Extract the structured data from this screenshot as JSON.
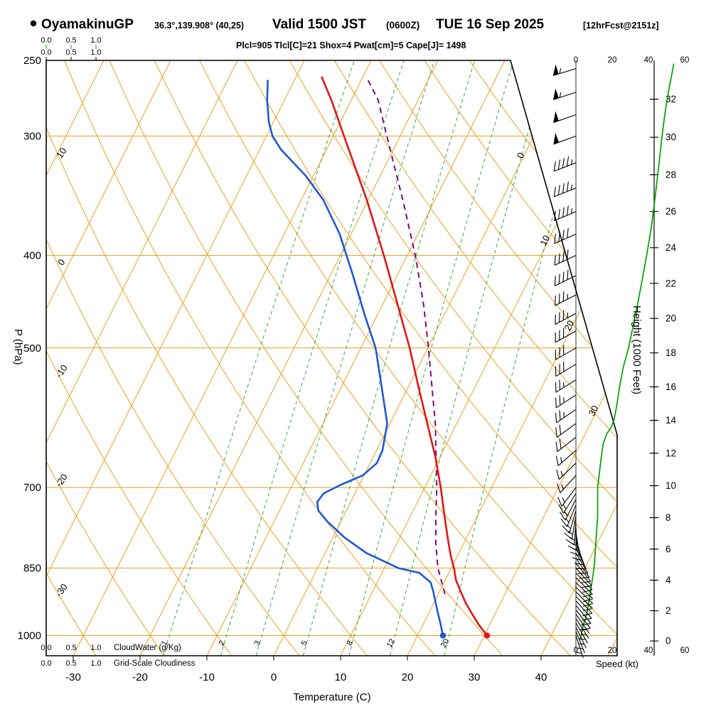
{
  "header": {
    "station": "OyamakinuGP",
    "coords": "36.3°,139.908° (40,25)",
    "valid": "Valid 1500 JST",
    "utc": "(0600Z)",
    "date": "TUE 16 Sep 2025",
    "fcst": "[12hrFcst@2151z]",
    "stats": "Plcl=905 Tlcl[C]=21 Shox=4 Pwat[cm]=5 Cape[J]= 1498"
  },
  "axes": {
    "pressure_label": "P (hPa)",
    "pressure_ticks": [
      250,
      300,
      400,
      500,
      700,
      850,
      1000
    ],
    "temp_label": "Temperature (C)",
    "temp_ticks": [
      -30,
      -20,
      -10,
      0,
      10,
      20,
      30,
      40
    ],
    "height_label": "Height (1000 Feet)",
    "height_ticks": [
      0,
      2,
      4,
      6,
      8,
      10,
      12,
      14,
      16,
      18,
      20,
      22,
      24,
      26,
      28,
      30,
      32
    ],
    "speed_label": "Speed (kt)",
    "speed_ticks": [
      0,
      20,
      40,
      60
    ],
    "cloud_scale": [
      "0.0",
      "0.5",
      "1.0"
    ],
    "cloudwater_label": "CloudWater (g/Kg)",
    "cloudiness_label": "Grid-Scale Cloudiness"
  },
  "lattice": {
    "isotherm_labels": [
      0,
      10,
      20,
      30
    ],
    "adiabat_labels": [
      10,
      0,
      -10,
      -20,
      -30
    ],
    "mixing_ratio_labels": [
      1,
      2,
      3,
      5,
      8,
      12,
      20
    ]
  },
  "colors": {
    "lattice": "#eaa121",
    "mixing": "#3fa33f",
    "green_text": "#00a000",
    "temperature": "#e01616",
    "dewpoint": "#1f57d4",
    "parcel": "#7a0b7a",
    "stats": "#a8006e",
    "frame": "#000000"
  },
  "chart_data": {
    "type": "line",
    "variant": "skew-t log-p thermodynamic sounding",
    "pressure_range_hpa": [
      1050,
      250
    ],
    "temp_axis_c": [
      -30,
      40
    ],
    "height_axis_kft": [
      0,
      32
    ],
    "speed_axis_kt": [
      0,
      60
    ],
    "series": [
      {
        "name": "temperature_c",
        "points": [
          [
            1000,
            30.4
          ],
          [
            975,
            28.4
          ],
          [
            950,
            26.6
          ],
          [
            925,
            24.8
          ],
          [
            900,
            23.2
          ],
          [
            875,
            21.6
          ],
          [
            850,
            20.4
          ],
          [
            825,
            19.0
          ],
          [
            800,
            17.7
          ],
          [
            750,
            15.1
          ],
          [
            700,
            12.4
          ],
          [
            650,
            9.3
          ],
          [
            600,
            5.6
          ],
          [
            550,
            1.6
          ],
          [
            500,
            -2.7
          ],
          [
            450,
            -7.8
          ],
          [
            400,
            -13.5
          ],
          [
            350,
            -20.2
          ],
          [
            300,
            -28.4
          ],
          [
            275,
            -33.0
          ],
          [
            260,
            -36.2
          ]
        ]
      },
      {
        "name": "dewpoint_c",
        "points": [
          [
            1000,
            23.8
          ],
          [
            975,
            22.7
          ],
          [
            950,
            21.5
          ],
          [
            925,
            20.3
          ],
          [
            900,
            19.1
          ],
          [
            880,
            18.0
          ],
          [
            860,
            15.6
          ],
          [
            850,
            12.1
          ],
          [
            820,
            6.2
          ],
          [
            790,
            1.8
          ],
          [
            760,
            -2.0
          ],
          [
            740,
            -4.2
          ],
          [
            725,
            -5.0
          ],
          [
            710,
            -4.7
          ],
          [
            695,
            -2.7
          ],
          [
            680,
            -0.2
          ],
          [
            660,
            1.0
          ],
          [
            640,
            0.9
          ],
          [
            600,
            -0.4
          ],
          [
            560,
            -3.2
          ],
          [
            520,
            -6.2
          ],
          [
            500,
            -7.8
          ],
          [
            460,
            -12.1
          ],
          [
            420,
            -16.6
          ],
          [
            380,
            -21.7
          ],
          [
            350,
            -26.7
          ],
          [
            330,
            -31.2
          ],
          [
            310,
            -36.8
          ],
          [
            300,
            -39.1
          ],
          [
            290,
            -40.7
          ],
          [
            275,
            -42.6
          ],
          [
            262,
            -44.0
          ]
        ]
      },
      {
        "name": "parcel_c",
        "points": [
          [
            905,
            21.0
          ],
          [
            850,
            18.0
          ],
          [
            800,
            15.8
          ],
          [
            750,
            13.8
          ],
          [
            700,
            11.8
          ],
          [
            650,
            9.4
          ],
          [
            600,
            6.8
          ],
          [
            550,
            3.6
          ],
          [
            500,
            0.1
          ],
          [
            450,
            -3.9
          ],
          [
            400,
            -8.8
          ],
          [
            350,
            -14.8
          ],
          [
            300,
            -22.0
          ],
          [
            275,
            -26.0
          ],
          [
            260,
            -29.5
          ]
        ]
      },
      {
        "name": "wind_speed_kt",
        "points": [
          [
            1010,
            2
          ],
          [
            1000,
            3
          ],
          [
            975,
            4
          ],
          [
            950,
            6
          ],
          [
            925,
            7
          ],
          [
            900,
            8
          ],
          [
            875,
            9
          ],
          [
            850,
            10
          ],
          [
            825,
            10.5
          ],
          [
            800,
            11
          ],
          [
            775,
            11.5
          ],
          [
            750,
            12
          ],
          [
            725,
            12
          ],
          [
            700,
            12
          ],
          [
            675,
            13
          ],
          [
            650,
            14
          ],
          [
            630,
            15
          ],
          [
            615,
            17
          ],
          [
            605,
            19.5
          ],
          [
            595,
            21
          ],
          [
            575,
            22.5
          ],
          [
            550,
            24
          ],
          [
            525,
            26
          ],
          [
            500,
            29
          ],
          [
            475,
            31.5
          ],
          [
            450,
            34
          ],
          [
            425,
            36.5
          ],
          [
            400,
            39
          ],
          [
            375,
            41.5
          ],
          [
            350,
            43.5
          ],
          [
            325,
            45.5
          ],
          [
            300,
            47.5
          ],
          [
            285,
            49
          ],
          [
            270,
            51
          ],
          [
            258,
            53
          ],
          [
            252,
            54
          ]
        ]
      },
      {
        "name": "wind_barbs_p_dir_kt",
        "points": [
          [
            1000,
            162,
            3
          ],
          [
            990,
            158,
            4
          ],
          [
            980,
            154,
            5
          ],
          [
            970,
            150,
            6
          ],
          [
            960,
            147,
            6
          ],
          [
            950,
            145,
            7
          ],
          [
            940,
            142,
            8
          ],
          [
            930,
            140,
            8
          ],
          [
            920,
            138,
            9
          ],
          [
            910,
            136,
            9
          ],
          [
            900,
            135,
            10
          ],
          [
            890,
            134,
            10
          ],
          [
            880,
            134,
            10
          ],
          [
            870,
            135,
            11
          ],
          [
            860,
            136,
            11
          ],
          [
            850,
            138,
            11
          ],
          [
            840,
            141,
            12
          ],
          [
            830,
            145,
            12
          ],
          [
            820,
            149,
            12
          ],
          [
            810,
            154,
            12
          ],
          [
            800,
            159,
            12
          ],
          [
            790,
            165,
            13
          ],
          [
            780,
            171,
            13
          ],
          [
            770,
            177,
            13
          ],
          [
            760,
            184,
            13
          ],
          [
            750,
            190,
            13
          ],
          [
            740,
            196,
            13
          ],
          [
            730,
            202,
            13
          ],
          [
            720,
            207,
            14
          ],
          [
            710,
            212,
            14
          ],
          [
            700,
            217,
            14
          ],
          [
            680,
            222,
            15
          ],
          [
            660,
            226,
            16
          ],
          [
            640,
            229,
            17
          ],
          [
            620,
            232,
            19
          ],
          [
            600,
            234,
            21
          ],
          [
            580,
            236,
            23
          ],
          [
            560,
            237,
            24
          ],
          [
            540,
            238,
            26
          ],
          [
            520,
            239,
            28
          ],
          [
            500,
            240,
            30
          ],
          [
            480,
            241,
            32
          ],
          [
            460,
            242,
            34
          ],
          [
            440,
            243,
            36
          ],
          [
            420,
            244,
            38
          ],
          [
            400,
            245,
            40
          ],
          [
            380,
            246,
            42
          ],
          [
            360,
            247,
            44
          ],
          [
            340,
            248,
            46
          ],
          [
            320,
            249,
            47
          ],
          [
            300,
            250,
            48
          ],
          [
            285,
            251,
            51
          ],
          [
            270,
            252,
            53
          ],
          [
            255,
            253,
            55
          ]
        ]
      }
    ]
  }
}
